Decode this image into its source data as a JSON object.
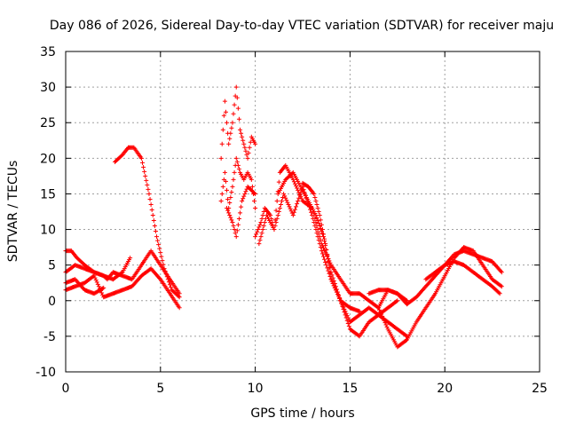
{
  "chart_data": {
    "type": "scatter",
    "title": "Day 086 of 2026, Sidereal Day-to-day VTEC variation (SDTVAR) for receiver maju",
    "xlabel": "GPS time / hours",
    "ylabel": "SDTVAR / TECUs",
    "xlim": [
      0,
      25
    ],
    "ylim": [
      -10,
      35
    ],
    "x_ticks": [
      0,
      5,
      10,
      15,
      20,
      25
    ],
    "x_tick_labels": [
      "0",
      "5",
      "10",
      "15",
      "20",
      "25"
    ],
    "y_ticks": [
      -10,
      -5,
      0,
      5,
      10,
      15,
      20,
      25,
      30,
      35
    ],
    "y_tick_labels": [
      "-10",
      "-5",
      "0",
      "5",
      "10",
      "15",
      "20",
      "25",
      "30",
      "35"
    ],
    "grid": true,
    "marker": "plus",
    "color": "#ff0000",
    "series": [
      {
        "name": "trace-1",
        "x": [
          0.0,
          0.3,
          0.6,
          1.0,
          1.5,
          2.0,
          2.5,
          3.0,
          3.4
        ],
        "y": [
          7.0,
          7.0,
          6.0,
          5.0,
          4.0,
          3.5,
          3.0,
          4.0,
          6.0
        ]
      },
      {
        "name": "trace-2",
        "x": [
          0.0,
          0.5,
          1.0,
          1.5,
          2.0,
          2.2,
          2.5,
          3.0,
          3.5,
          4.0,
          4.5,
          5.0,
          5.5,
          6.0
        ],
        "y": [
          4.0,
          5.0,
          4.5,
          4.0,
          3.5,
          3.0,
          4.0,
          3.5,
          3.0,
          5.0,
          7.0,
          5.0,
          3.0,
          1.0
        ]
      },
      {
        "name": "trace-3",
        "x": [
          0.0,
          0.5,
          1.0,
          1.5,
          2.0,
          2.5,
          3.0,
          3.5,
          4.0,
          4.5,
          5.0,
          5.5,
          6.0
        ],
        "y": [
          1.5,
          2.0,
          2.5,
          3.5,
          0.5,
          1.0,
          1.5,
          2.0,
          3.5,
          4.5,
          3.0,
          1.0,
          -1.0
        ]
      },
      {
        "name": "trace-4",
        "x": [
          0.0,
          0.5,
          1.0,
          1.5,
          2.0
        ],
        "y": [
          2.5,
          3.0,
          1.5,
          1.0,
          1.8
        ]
      },
      {
        "name": "trace-5",
        "x": [
          2.6,
          3.0,
          3.3,
          3.6,
          4.0,
          4.4,
          4.8,
          5.2,
          5.6,
          6.0
        ],
        "y": [
          19.5,
          20.5,
          21.5,
          21.5,
          20.0,
          15.0,
          9.0,
          4.5,
          1.5,
          0.5
        ]
      },
      {
        "name": "trace-6",
        "x": [
          8.2,
          8.4,
          8.6,
          8.8,
          9.0,
          9.2,
          9.4,
          9.6,
          9.8,
          10.0
        ],
        "y": [
          20.0,
          28.0,
          22.0,
          25.0,
          30.0,
          24.0,
          22.0,
          20.0,
          23.0,
          22.0
        ]
      },
      {
        "name": "trace-7",
        "x": [
          8.2,
          8.4,
          8.6,
          8.8,
          9.0,
          9.2,
          9.4,
          9.6,
          9.8,
          10.0
        ],
        "y": [
          14.0,
          18.0,
          13.0,
          16.0,
          20.0,
          18.0,
          17.0,
          18.0,
          17.0,
          13.0
        ]
      },
      {
        "name": "trace-8",
        "x": [
          8.5,
          8.8,
          9.0,
          9.3,
          9.6,
          10.0
        ],
        "y": [
          13.0,
          11.0,
          9.0,
          14.0,
          16.0,
          15.0
        ]
      },
      {
        "name": "trace-9",
        "x": [
          10.0,
          10.3,
          10.5,
          10.8,
          11.0,
          11.3,
          11.6,
          12.0,
          12.5,
          13.0,
          13.5,
          14.0,
          14.5,
          15.0,
          15.5,
          16.0,
          16.5,
          17.0,
          17.5,
          18.0
        ],
        "y": [
          9.0,
          11.0,
          13.0,
          12.0,
          10.0,
          18.0,
          19.0,
          17.0,
          14.0,
          13.0,
          8.0,
          5.0,
          3.0,
          1.0,
          1.0,
          0.0,
          -1.0,
          1.5,
          1.0,
          0.0
        ]
      },
      {
        "name": "trace-10",
        "x": [
          10.2,
          10.6,
          11.0,
          11.5,
          12.0,
          12.5,
          13.0,
          13.5,
          14.0,
          14.5,
          15.0,
          15.5,
          16.0,
          16.5,
          17.0,
          17.5,
          18.0
        ],
        "y": [
          8.0,
          12.0,
          10.0,
          15.0,
          12.0,
          16.0,
          12.0,
          7.0,
          3.0,
          0.0,
          -3.0,
          -2.0,
          -1.0,
          -2.0,
          -3.0,
          -4.0,
          -5.0
        ]
      },
      {
        "name": "trace-11",
        "x": [
          11.2,
          11.6,
          12.0,
          12.4,
          12.8,
          13.2,
          13.6,
          14.0,
          14.5,
          15.0,
          15.5,
          16.0,
          16.5,
          17.0,
          17.5
        ],
        "y": [
          15.0,
          17.0,
          18.0,
          16.0,
          14.0,
          12.0,
          9.0,
          4.0,
          0.0,
          -4.0,
          -5.0,
          -3.0,
          -2.0,
          -1.0,
          0.0
        ]
      },
      {
        "name": "trace-12",
        "x": [
          12.5,
          12.8,
          13.1,
          13.4,
          13.7,
          14.0,
          14.5,
          15.0,
          15.5
        ],
        "y": [
          16.5,
          16.0,
          15.0,
          12.0,
          8.0,
          3.0,
          0.0,
          -1.0,
          -1.5
        ]
      },
      {
        "name": "trace-13",
        "x": [
          16.0,
          16.5,
          17.0,
          17.5,
          18.0,
          18.5,
          19.0,
          19.5,
          20.0,
          20.5,
          21.0,
          21.5,
          22.0,
          22.5,
          23.0
        ],
        "y": [
          1.0,
          1.5,
          1.5,
          1.0,
          -0.5,
          0.5,
          2.0,
          3.5,
          5.0,
          6.5,
          7.0,
          6.5,
          6.0,
          5.5,
          4.0
        ]
      },
      {
        "name": "trace-14",
        "x": [
          16.5,
          17.0,
          17.5,
          18.0,
          18.5,
          19.0,
          19.5,
          20.0,
          20.5,
          21.0,
          21.5,
          22.0,
          22.5,
          23.0
        ],
        "y": [
          -1.0,
          -4.0,
          -6.5,
          -5.5,
          -3.0,
          -1.0,
          1.0,
          3.5,
          6.0,
          7.5,
          7.0,
          5.0,
          3.0,
          2.0
        ]
      },
      {
        "name": "trace-15",
        "x": [
          19.0,
          19.5,
          20.0,
          20.5,
          21.0,
          21.5,
          22.0,
          22.5,
          22.9
        ],
        "y": [
          3.0,
          4.0,
          5.0,
          5.5,
          5.0,
          4.0,
          3.0,
          2.0,
          1.0
        ]
      }
    ]
  }
}
